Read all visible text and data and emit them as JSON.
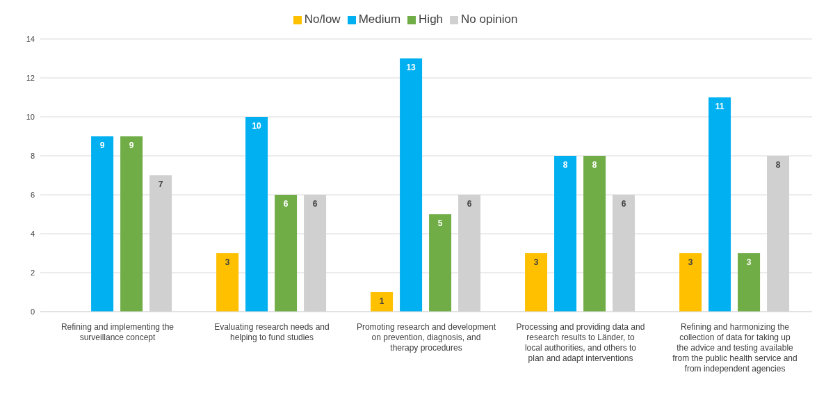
{
  "chart_data": {
    "type": "bar",
    "categories": [
      "Refining and implementing the surveillance concept",
      "Evaluating research needs and helping to fund studies",
      "Promoting research and development on prevention, diagnosis, and therapy procedures",
      "Processing and providing data and research results to Länder, to local authorities, and others to plan and adapt interventions",
      "Refining and harmonizing the collection of data for taking up the advice and testing available from the public health service and from independent agencies"
    ],
    "series": [
      {
        "name": "No/low",
        "color": "#ffc000",
        "values": [
          null,
          3,
          1,
          3,
          3
        ]
      },
      {
        "name": "Medium",
        "color": "#00b0f0",
        "values": [
          9,
          10,
          13,
          8,
          11
        ]
      },
      {
        "name": "High",
        "color": "#70ad47",
        "values": [
          9,
          6,
          5,
          8,
          3
        ]
      },
      {
        "name": "No opinion",
        "color": "#d0d0d0",
        "values": [
          7,
          6,
          6,
          6,
          8
        ]
      }
    ],
    "ylim": [
      0,
      14
    ],
    "yticks": [
      0,
      2,
      4,
      6,
      8,
      10,
      12,
      14
    ],
    "grid": "y",
    "legend": "top",
    "data_labels": true
  }
}
